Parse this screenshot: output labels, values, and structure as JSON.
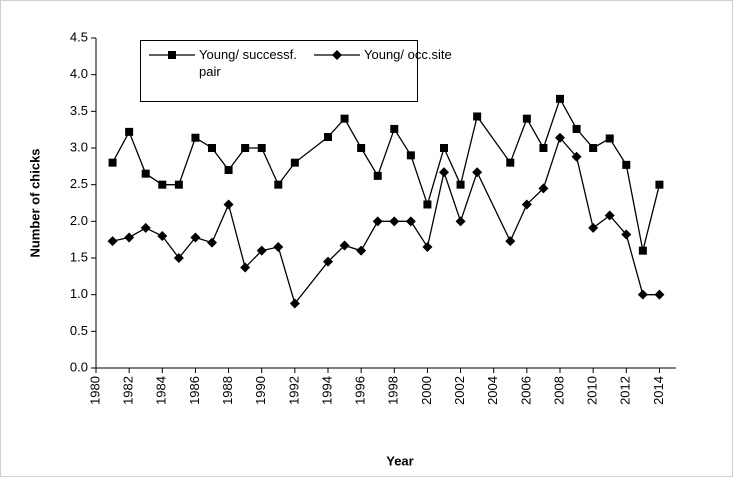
{
  "chart_data": {
    "type": "line",
    "x": [
      1981,
      1982,
      1983,
      1984,
      1985,
      1986,
      1987,
      1988,
      1989,
      1990,
      1991,
      1992,
      1994,
      1995,
      1996,
      1997,
      1998,
      1999,
      2000,
      2001,
      2002,
      2003,
      2005,
      2006,
      2007,
      2008,
      2009,
      2010,
      2011,
      2012,
      2013,
      2014
    ],
    "series": [
      {
        "name": "Young/ successf. pair",
        "color": "#000000",
        "marker": "square",
        "values": [
          2.8,
          3.22,
          2.65,
          2.5,
          2.5,
          3.14,
          3.0,
          2.7,
          3.0,
          3.0,
          2.5,
          2.8,
          3.15,
          3.4,
          3.0,
          2.62,
          3.26,
          2.9,
          2.23,
          3.0,
          2.5,
          3.43,
          2.8,
          3.4,
          3.0,
          3.67,
          3.26,
          3.0,
          3.13,
          2.77,
          1.6,
          2.5
        ]
      },
      {
        "name": "Young/ occ.site",
        "color": "#000000",
        "marker": "diamond",
        "values": [
          1.73,
          1.78,
          1.91,
          1.8,
          1.5,
          1.78,
          1.71,
          2.23,
          1.37,
          1.6,
          1.65,
          0.88,
          1.45,
          1.67,
          1.6,
          2.0,
          2.0,
          2.0,
          1.65,
          2.67,
          2.0,
          2.67,
          1.73,
          2.23,
          2.45,
          3.14,
          2.88,
          1.91,
          2.08,
          1.82,
          1.0,
          1.0
        ]
      }
    ],
    "x_label": "Year",
    "y_label": "Number of chicks",
    "xlim": [
      1980,
      2015
    ],
    "xticks": [
      1980,
      1982,
      1984,
      1986,
      1988,
      1990,
      1992,
      1994,
      1996,
      1998,
      2000,
      2002,
      2004,
      2006,
      2008,
      2010,
      2012,
      2014
    ],
    "ylim": [
      0,
      4.5
    ],
    "yticks": [
      {
        "value": 0,
        "label": "0.0"
      },
      {
        "value": 0.5,
        "label": "0.5"
      },
      {
        "value": 1,
        "label": "1.0"
      },
      {
        "value": 1.5,
        "label": "1.5"
      },
      {
        "value": 2,
        "label": "2.0"
      },
      {
        "value": 2.5,
        "label": "2.5"
      },
      {
        "value": 3,
        "label": "3.0"
      },
      {
        "value": 3.5,
        "label": "3.5"
      },
      {
        "value": 4,
        "label": "4.0"
      },
      {
        "value": 4.5,
        "label": "4.5"
      }
    ],
    "grid": false
  }
}
